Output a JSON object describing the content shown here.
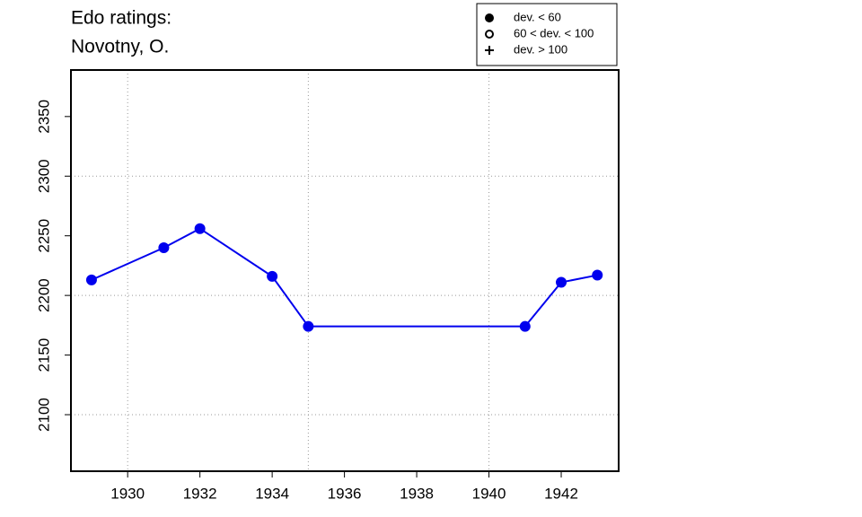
{
  "chart_data": {
    "type": "line",
    "title": [
      "Edo ratings:",
      "Novotny, O."
    ],
    "x": [
      1929,
      1931,
      1932,
      1934,
      1935,
      1941,
      1942,
      1943
    ],
    "series": [
      {
        "color": "#0000ee",
        "marker": "filled",
        "values": [
          2213,
          2240,
          2256,
          2216,
          2174,
          2174,
          2211,
          2217
        ]
      }
    ],
    "xlim": [
      1928.43,
      1943.59
    ],
    "ylim": [
      2052.6,
      2389
    ],
    "xticks": [
      1930,
      1932,
      1934,
      1936,
      1938,
      1940,
      1942
    ],
    "yticks": [
      2100,
      2150,
      2200,
      2250,
      2300,
      2350
    ],
    "xgrid": [
      1930,
      1935,
      1940
    ],
    "ygrid": [
      2100,
      2200,
      2300
    ],
    "legend": [
      {
        "label": "dev. < 60",
        "symbol": "filled"
      },
      {
        "label": "60 < dev. < 100",
        "symbol": "open"
      },
      {
        "label": "dev. > 100",
        "symbol": "plus"
      }
    ]
  }
}
